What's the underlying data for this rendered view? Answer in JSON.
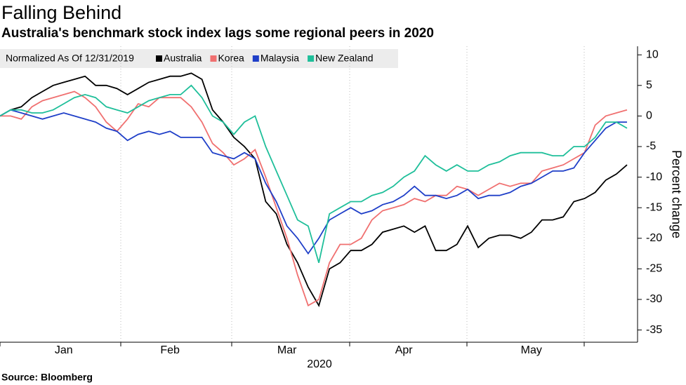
{
  "chart_data": {
    "type": "line",
    "title": "Falling Behind",
    "subtitle": "Australia's benchmark stock index lags some regional peers in 2020",
    "legend_title": "Normalized As Of 12/31/2019",
    "ylabel": "Percent change",
    "xlabel": "2020",
    "source": "Source: Bloomberg",
    "legend": "top-left",
    "categories": [
      null,
      null,
      null,
      null,
      null,
      null,
      "Jan",
      null,
      null,
      null,
      null,
      null,
      null,
      null,
      null,
      null,
      "Feb",
      null,
      null,
      null,
      null,
      null,
      null,
      null,
      null,
      null,
      null,
      "Mar",
      null,
      null,
      null,
      null,
      null,
      null,
      null,
      null,
      null,
      null,
      "Apr",
      null,
      null,
      null,
      null,
      null,
      null,
      null,
      null,
      null,
      null,
      null,
      "May",
      null,
      null,
      null,
      null,
      null,
      null,
      null,
      null,
      null
    ],
    "ylim": [
      -37,
      11.4
    ],
    "yticks": [
      -35,
      -30,
      -25,
      -20,
      -15,
      -10,
      -5,
      0,
      5,
      10
    ],
    "series": [
      {
        "name": "Australia",
        "color": "#000000",
        "values": [
          0,
          1,
          1.5,
          3,
          4,
          5,
          5.5,
          6,
          6.5,
          5,
          5,
          4.5,
          3.5,
          4.5,
          5.5,
          6,
          6.5,
          6.5,
          7,
          6,
          1,
          -1,
          -3.5,
          -5,
          -7,
          -14,
          -16,
          -21,
          -24,
          -28,
          -31,
          -25,
          -24,
          -22,
          -22,
          -21,
          -19,
          -18.5,
          -18,
          -19,
          -18,
          -22,
          -22,
          -21,
          -18,
          -21.5,
          -20,
          -19.5,
          -19.5,
          -20,
          -19,
          -17,
          -17,
          -16.5,
          -14,
          -13.5,
          -12.5,
          -10.5,
          -9.5,
          -8
        ]
      },
      {
        "name": "Korea",
        "color": "#f07070",
        "values": [
          0,
          0,
          -0.5,
          1.5,
          2.5,
          3,
          3.5,
          4,
          3,
          1.5,
          -1,
          -2.5,
          -0.5,
          2,
          1.5,
          3,
          3,
          3,
          1.5,
          -1,
          -4.5,
          -6,
          -8,
          -7,
          -5.5,
          -10,
          -15,
          -20,
          -26,
          -31,
          -30,
          -24,
          -21,
          -21,
          -20,
          -17,
          -15.5,
          -15,
          -14.5,
          -13.5,
          -14,
          -13,
          -13,
          -11.5,
          -12,
          -13,
          -12,
          -11,
          -11.5,
          -11,
          -11,
          -9,
          -8.5,
          -8,
          -7,
          -6,
          -1.5,
          0,
          0.5,
          1
        ]
      },
      {
        "name": "Malaysia",
        "color": "#1f3fc8",
        "values": [
          0,
          1,
          0.5,
          0,
          -0.5,
          0,
          0.5,
          0,
          -0.5,
          -1,
          -2,
          -2.5,
          -4,
          -3,
          -2.5,
          -3,
          -2.5,
          -3.5,
          -3.5,
          -3.5,
          -6,
          -6.5,
          -7,
          -6,
          -7,
          -11,
          -14,
          -18,
          -20,
          -22.5,
          -20,
          -17,
          -16,
          -15,
          -16,
          -15.5,
          -14.5,
          -14,
          -13,
          -11.5,
          -13,
          -13,
          -13.5,
          -13,
          -12,
          -13.5,
          -13,
          -13,
          -12.5,
          -11.5,
          -11,
          -10,
          -9,
          -9,
          -8.5,
          -6,
          -4,
          -2,
          -1,
          -1
        ]
      },
      {
        "name": "New Zealand",
        "color": "#1fbf9a",
        "values": [
          0,
          1,
          1,
          0.5,
          0.5,
          1,
          2,
          3,
          3.5,
          3,
          1.5,
          1,
          0.5,
          1.5,
          2.5,
          3,
          3.5,
          3.5,
          5,
          3,
          0,
          -1,
          -3,
          -1,
          0,
          -5,
          -9,
          -13,
          -17,
          -18,
          -24,
          -16,
          -15,
          -14,
          -14,
          -13,
          -12.5,
          -11.5,
          -10,
          -9,
          -6.5,
          -8,
          -9,
          -8,
          -9,
          -9,
          -8,
          -7.5,
          -6.5,
          -6,
          -6,
          -6,
          -6.5,
          -6.5,
          -5,
          -5,
          -3.5,
          -1,
          -1,
          -2
        ]
      }
    ]
  }
}
